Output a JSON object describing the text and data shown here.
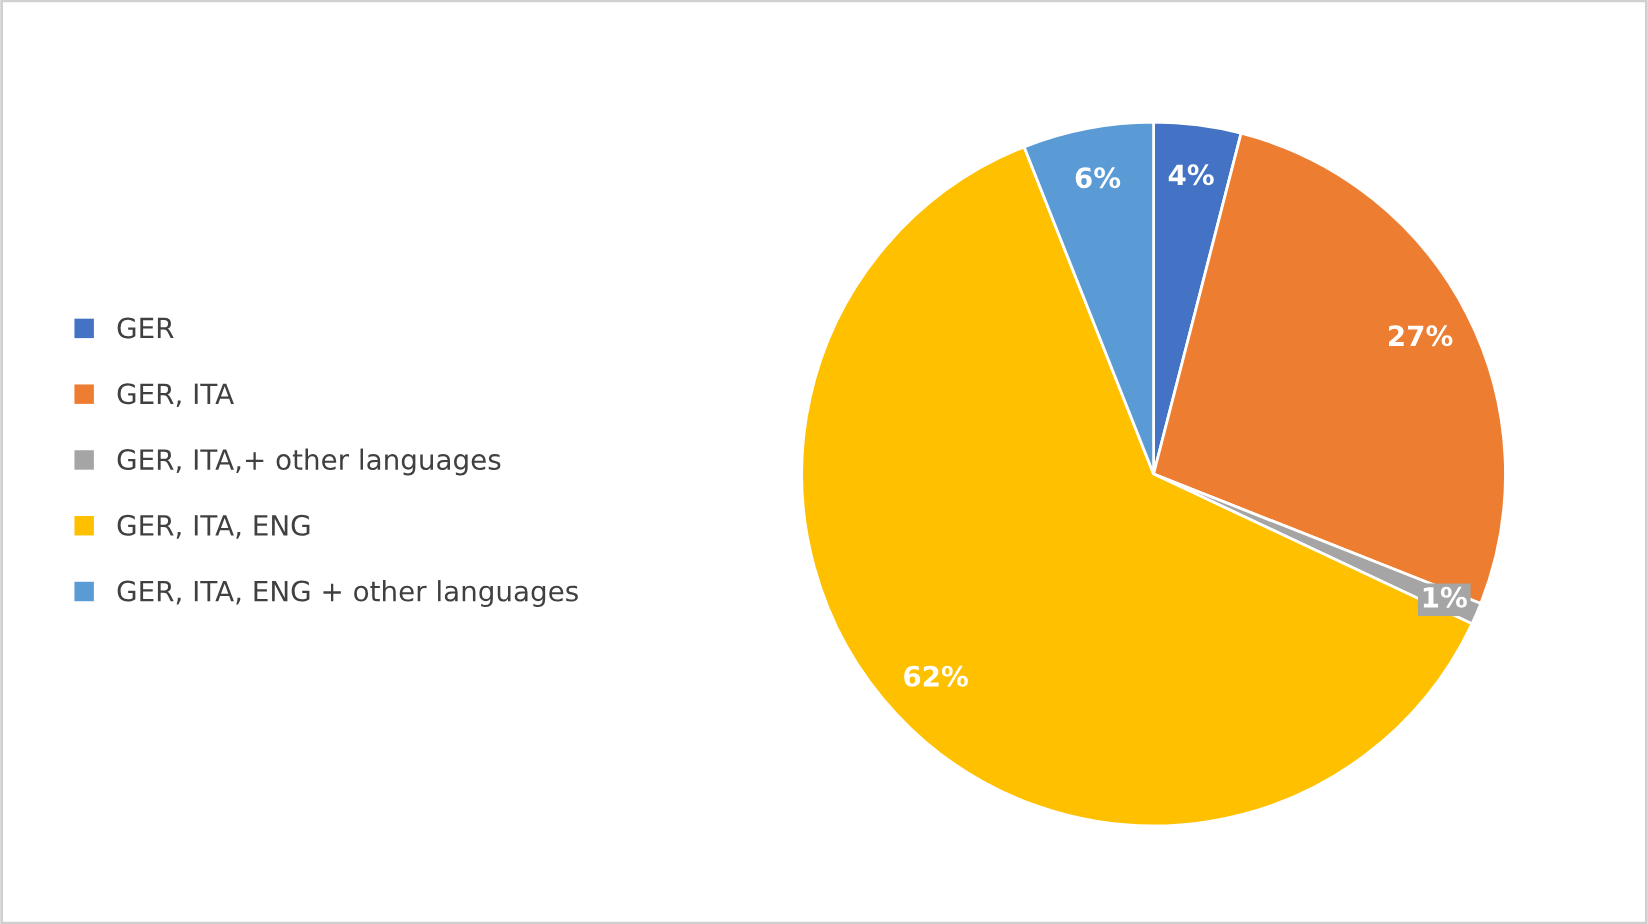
{
  "chart_data": {
    "type": "pie",
    "categories": [
      "GER",
      "GER, ITA",
      "GER, ITA,+ other languages",
      "GER, ITA, ENG",
      "GER, ITA, ENG + other languages"
    ],
    "values": [
      4,
      27,
      1,
      62,
      6
    ],
    "colors": [
      "#4472c4",
      "#ed7d31",
      "#a5a5a5",
      "#ffc000",
      "#5b9bd5"
    ],
    "value_labels": [
      "4%",
      "27%",
      "1%",
      "62%",
      "6%"
    ],
    "legend": "left"
  }
}
